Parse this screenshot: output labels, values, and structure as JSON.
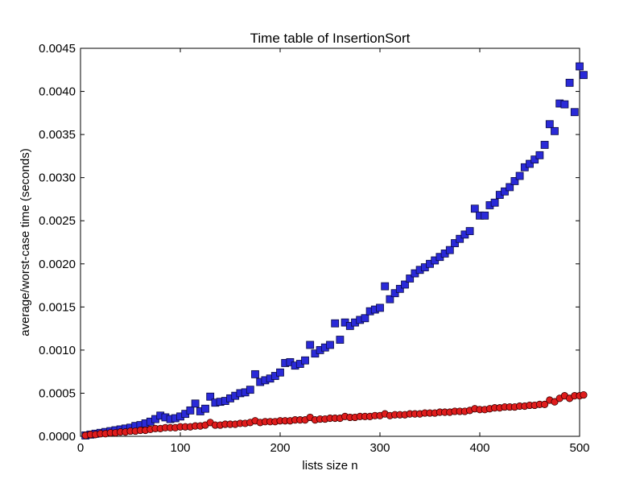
{
  "chart_data": {
    "type": "scatter",
    "title": "Time table of InsertionSort",
    "xlabel": "lists size n",
    "ylabel": "average/worst-case time (seconds)",
    "xlim": [
      0,
      500
    ],
    "ylim": [
      0,
      0.0045
    ],
    "xticks": [
      0,
      100,
      200,
      300,
      400,
      500
    ],
    "xtick_labels": [
      "0",
      "100",
      "200",
      "300",
      "400",
      "500"
    ],
    "yticks": [
      0,
      0.0005,
      0.001,
      0.0015,
      0.002,
      0.0025,
      0.003,
      0.0035,
      0.004,
      0.0045
    ],
    "ytick_labels": [
      "0.0000",
      "0.0005",
      "0.0010",
      "0.0015",
      "0.0020",
      "0.0025",
      "0.0030",
      "0.0035",
      "0.0040",
      "0.0045"
    ],
    "grid": false,
    "series": [
      {
        "marker": "square",
        "color": "#2a2ad8",
        "points": [
          [
            5,
            1e-05
          ],
          [
            10,
            2e-05
          ],
          [
            15,
            3e-05
          ],
          [
            20,
            4e-05
          ],
          [
            25,
            5e-05
          ],
          [
            30,
            6e-05
          ],
          [
            35,
            7e-05
          ],
          [
            40,
            8e-05
          ],
          [
            45,
            9e-05
          ],
          [
            50,
            0.0001
          ],
          [
            55,
            0.00012
          ],
          [
            60,
            0.00013
          ],
          [
            65,
            0.00015
          ],
          [
            70,
            0.00017
          ],
          [
            75,
            0.0002
          ],
          [
            80,
            0.00024
          ],
          [
            85,
            0.00022
          ],
          [
            90,
            0.0002
          ],
          [
            95,
            0.00021
          ],
          [
            100,
            0.00023
          ],
          [
            105,
            0.00026
          ],
          [
            110,
            0.0003
          ],
          [
            115,
            0.00038
          ],
          [
            120,
            0.00029
          ],
          [
            125,
            0.00032
          ],
          [
            130,
            0.00046
          ],
          [
            135,
            0.00039
          ],
          [
            140,
            0.0004
          ],
          [
            145,
            0.00041
          ],
          [
            150,
            0.00044
          ],
          [
            155,
            0.00047
          ],
          [
            160,
            0.0005
          ],
          [
            165,
            0.00051
          ],
          [
            170,
            0.00054
          ],
          [
            175,
            0.00072
          ],
          [
            180,
            0.00063
          ],
          [
            185,
            0.00065
          ],
          [
            190,
            0.00067
          ],
          [
            195,
            0.0007
          ],
          [
            200,
            0.00074
          ],
          [
            205,
            0.00085
          ],
          [
            210,
            0.00086
          ],
          [
            215,
            0.00082
          ],
          [
            220,
            0.00084
          ],
          [
            225,
            0.00088
          ],
          [
            230,
            0.00106
          ],
          [
            235,
            0.00096
          ],
          [
            240,
            0.001
          ],
          [
            245,
            0.00103
          ],
          [
            250,
            0.00106
          ],
          [
            255,
            0.00131
          ],
          [
            260,
            0.00112
          ],
          [
            265,
            0.00132
          ],
          [
            270,
            0.00128
          ],
          [
            275,
            0.00132
          ],
          [
            280,
            0.00135
          ],
          [
            285,
            0.00137
          ],
          [
            290,
            0.00145
          ],
          [
            295,
            0.00147
          ],
          [
            300,
            0.00149
          ],
          [
            305,
            0.00174
          ],
          [
            310,
            0.00159
          ],
          [
            315,
            0.00166
          ],
          [
            320,
            0.00171
          ],
          [
            325,
            0.00176
          ],
          [
            330,
            0.00183
          ],
          [
            335,
            0.00189
          ],
          [
            340,
            0.00193
          ],
          [
            345,
            0.00196
          ],
          [
            350,
            0.002
          ],
          [
            355,
            0.00204
          ],
          [
            360,
            0.00208
          ],
          [
            365,
            0.00212
          ],
          [
            370,
            0.00216
          ],
          [
            375,
            0.00224
          ],
          [
            380,
            0.00229
          ],
          [
            385,
            0.00234
          ],
          [
            390,
            0.00238
          ],
          [
            395,
            0.00264
          ],
          [
            400,
            0.00256
          ],
          [
            405,
            0.00256
          ],
          [
            410,
            0.00268
          ],
          [
            415,
            0.00271
          ],
          [
            420,
            0.0028
          ],
          [
            425,
            0.00284
          ],
          [
            430,
            0.00289
          ],
          [
            435,
            0.00296
          ],
          [
            440,
            0.00302
          ],
          [
            445,
            0.00312
          ],
          [
            450,
            0.00316
          ],
          [
            455,
            0.00321
          ],
          [
            460,
            0.00326
          ],
          [
            465,
            0.00338
          ],
          [
            470,
            0.00362
          ],
          [
            475,
            0.00354
          ],
          [
            480,
            0.00386
          ],
          [
            485,
            0.00385
          ],
          [
            490,
            0.0041
          ],
          [
            495,
            0.00376
          ],
          [
            500,
            0.00429
          ],
          [
            504,
            0.00419
          ]
        ]
      },
      {
        "marker": "circle",
        "color": "#e01c1c",
        "points": [
          [
            5,
            1e-05
          ],
          [
            10,
            2e-05
          ],
          [
            15,
            2e-05
          ],
          [
            20,
            3e-05
          ],
          [
            25,
            3e-05
          ],
          [
            30,
            4e-05
          ],
          [
            35,
            4e-05
          ],
          [
            40,
            5e-05
          ],
          [
            45,
            5e-05
          ],
          [
            50,
            6e-05
          ],
          [
            55,
            6e-05
          ],
          [
            60,
            7e-05
          ],
          [
            65,
            7e-05
          ],
          [
            70,
            8e-05
          ],
          [
            75,
            9e-05
          ],
          [
            80,
            9e-05
          ],
          [
            85,
            0.0001
          ],
          [
            90,
            0.0001
          ],
          [
            95,
            0.0001
          ],
          [
            100,
            0.00011
          ],
          [
            105,
            0.00011
          ],
          [
            110,
            0.00011
          ],
          [
            115,
            0.00012
          ],
          [
            120,
            0.00012
          ],
          [
            125,
            0.00013
          ],
          [
            130,
            0.00016
          ],
          [
            135,
            0.00013
          ],
          [
            140,
            0.00013
          ],
          [
            145,
            0.00014
          ],
          [
            150,
            0.00014
          ],
          [
            155,
            0.00014
          ],
          [
            160,
            0.00015
          ],
          [
            165,
            0.00015
          ],
          [
            170,
            0.00016
          ],
          [
            175,
            0.00018
          ],
          [
            180,
            0.00016
          ],
          [
            185,
            0.00017
          ],
          [
            190,
            0.00017
          ],
          [
            195,
            0.00017
          ],
          [
            200,
            0.00018
          ],
          [
            205,
            0.00018
          ],
          [
            210,
            0.00018
          ],
          [
            215,
            0.00019
          ],
          [
            220,
            0.00019
          ],
          [
            225,
            0.00019
          ],
          [
            230,
            0.00022
          ],
          [
            235,
            0.00019
          ],
          [
            240,
            0.0002
          ],
          [
            245,
            0.0002
          ],
          [
            250,
            0.00021
          ],
          [
            255,
            0.00021
          ],
          [
            260,
            0.00021
          ],
          [
            265,
            0.00023
          ],
          [
            270,
            0.00022
          ],
          [
            275,
            0.00022
          ],
          [
            280,
            0.00023
          ],
          [
            285,
            0.00023
          ],
          [
            290,
            0.00023
          ],
          [
            295,
            0.00024
          ],
          [
            300,
            0.00024
          ],
          [
            305,
            0.00026
          ],
          [
            310,
            0.00024
          ],
          [
            315,
            0.00025
          ],
          [
            320,
            0.00025
          ],
          [
            325,
            0.00025
          ],
          [
            330,
            0.00026
          ],
          [
            335,
            0.00026
          ],
          [
            340,
            0.00026
          ],
          [
            345,
            0.00027
          ],
          [
            350,
            0.00027
          ],
          [
            355,
            0.00027
          ],
          [
            360,
            0.00028
          ],
          [
            365,
            0.00028
          ],
          [
            370,
            0.00028
          ],
          [
            375,
            0.00029
          ],
          [
            380,
            0.00029
          ],
          [
            385,
            0.00029
          ],
          [
            390,
            0.0003
          ],
          [
            395,
            0.00032
          ],
          [
            400,
            0.00031
          ],
          [
            405,
            0.00031
          ],
          [
            410,
            0.00032
          ],
          [
            415,
            0.00033
          ],
          [
            420,
            0.00033
          ],
          [
            425,
            0.00034
          ],
          [
            430,
            0.00034
          ],
          [
            435,
            0.00034
          ],
          [
            440,
            0.00035
          ],
          [
            445,
            0.00035
          ],
          [
            450,
            0.00036
          ],
          [
            455,
            0.00036
          ],
          [
            460,
            0.00037
          ],
          [
            465,
            0.00037
          ],
          [
            470,
            0.00042
          ],
          [
            475,
            0.0004
          ],
          [
            480,
            0.00044
          ],
          [
            485,
            0.00047
          ],
          [
            490,
            0.00044
          ],
          [
            495,
            0.00047
          ],
          [
            500,
            0.00047
          ],
          [
            504,
            0.00048
          ]
        ]
      }
    ]
  }
}
